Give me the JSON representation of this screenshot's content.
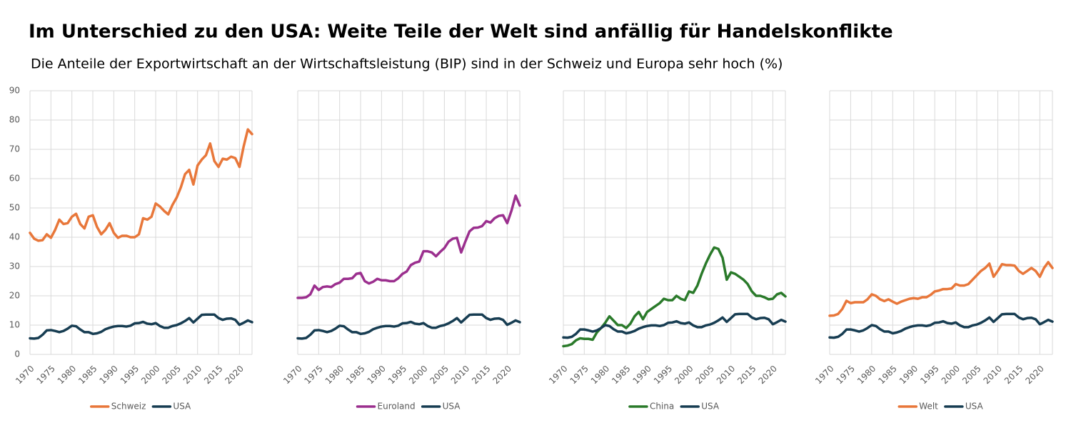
{
  "title": "Im Unterschied zu den USA: Weite Teile der Welt sind anfällig für Handelskonflikte",
  "subtitle": "Die Anteile der Exportwirtschaft an der Wirtschaftsleistung (BIP) sind in der Schweiz und Europa sehr hoch (%)",
  "chart_data": [
    {
      "type": "line",
      "grid": true,
      "show_ytick_labels": true,
      "x": [
        1970,
        1971,
        1972,
        1973,
        1974,
        1975,
        1976,
        1977,
        1978,
        1979,
        1980,
        1981,
        1982,
        1983,
        1984,
        1985,
        1986,
        1987,
        1988,
        1989,
        1990,
        1991,
        1992,
        1993,
        1994,
        1995,
        1996,
        1997,
        1998,
        1999,
        2000,
        2001,
        2002,
        2003,
        2004,
        2005,
        2006,
        2007,
        2008,
        2009,
        2010,
        2011,
        2012,
        2013,
        2014,
        2015,
        2016,
        2017,
        2018,
        2019,
        2020,
        2021,
        2022,
        2023
      ],
      "xlim": [
        1970,
        2023
      ],
      "xticks": [
        1970,
        1975,
        1980,
        1985,
        1990,
        1995,
        2000,
        2005,
        2010,
        2015,
        2020
      ],
      "ylim": [
        0,
        90
      ],
      "yticks": [
        0,
        10,
        20,
        30,
        40,
        50,
        60,
        70,
        80,
        90
      ],
      "series": [
        {
          "name": "Schweiz",
          "color": "#e8773a",
          "values": [
            41.5,
            39.5,
            38.8,
            39.0,
            41.0,
            39.8,
            42.5,
            46.0,
            44.5,
            44.8,
            47.0,
            48.0,
            44.5,
            43.0,
            47.0,
            47.5,
            43.5,
            41.0,
            42.5,
            44.8,
            41.5,
            39.8,
            40.5,
            40.5,
            40.0,
            40.0,
            41.0,
            46.5,
            46.0,
            47.0,
            51.5,
            50.5,
            49.0,
            47.8,
            51.0,
            53.5,
            57.0,
            61.5,
            63.0,
            58.0,
            64.5,
            66.5,
            68.0,
            72.0,
            66.0,
            64.0,
            66.8,
            66.5,
            67.5,
            67.0,
            64.0,
            71.0,
            76.8,
            75.2
          ]
        },
        {
          "name": "USA",
          "color": "#173d52",
          "values": [
            5.5,
            5.4,
            5.6,
            6.7,
            8.2,
            8.3,
            8.0,
            7.6,
            8.0,
            8.8,
            9.8,
            9.6,
            8.5,
            7.6,
            7.6,
            7.0,
            7.2,
            7.7,
            8.6,
            9.1,
            9.5,
            9.7,
            9.7,
            9.5,
            9.8,
            10.6,
            10.7,
            11.1,
            10.5,
            10.3,
            10.7,
            9.7,
            9.1,
            9.1,
            9.7,
            10.0,
            10.6,
            11.4,
            12.4,
            10.9,
            12.2,
            13.5,
            13.6,
            13.6,
            13.6,
            12.4,
            11.8,
            12.2,
            12.3,
            11.8,
            10.1,
            10.8,
            11.6,
            11.0
          ]
        }
      ]
    },
    {
      "type": "line",
      "grid": true,
      "show_ytick_labels": false,
      "x": [
        1970,
        1971,
        1972,
        1973,
        1974,
        1975,
        1976,
        1977,
        1978,
        1979,
        1980,
        1981,
        1982,
        1983,
        1984,
        1985,
        1986,
        1987,
        1988,
        1989,
        1990,
        1991,
        1992,
        1993,
        1994,
        1995,
        1996,
        1997,
        1998,
        1999,
        2000,
        2001,
        2002,
        2003,
        2004,
        2005,
        2006,
        2007,
        2008,
        2009,
        2010,
        2011,
        2012,
        2013,
        2014,
        2015,
        2016,
        2017,
        2018,
        2019,
        2020,
        2021,
        2022,
        2023
      ],
      "xlim": [
        1970,
        2023
      ],
      "xticks": [
        1970,
        1975,
        1980,
        1985,
        1990,
        1995,
        2000,
        2005,
        2010,
        2015,
        2020
      ],
      "ylim": [
        0,
        90
      ],
      "yticks": [
        0,
        10,
        20,
        30,
        40,
        50,
        60,
        70,
        80,
        90
      ],
      "series": [
        {
          "name": "Euroland",
          "color": "#9b2f8e",
          "values": [
            19.3,
            19.3,
            19.5,
            20.5,
            23.5,
            22.0,
            23.0,
            23.2,
            23.0,
            24.0,
            24.5,
            25.8,
            25.8,
            26.0,
            27.5,
            27.8,
            25.0,
            24.2,
            24.8,
            25.8,
            25.3,
            25.3,
            25.0,
            25.0,
            26.0,
            27.5,
            28.3,
            30.5,
            31.3,
            31.7,
            35.2,
            35.2,
            34.8,
            33.5,
            35.0,
            36.3,
            38.5,
            39.5,
            39.8,
            34.8,
            38.5,
            42.0,
            43.2,
            43.3,
            43.8,
            45.5,
            45.0,
            46.5,
            47.3,
            47.5,
            44.8,
            49.0,
            54.2,
            50.8
          ]
        },
        {
          "name": "USA",
          "color": "#173d52",
          "values": [
            5.5,
            5.4,
            5.6,
            6.7,
            8.2,
            8.3,
            8.0,
            7.6,
            8.0,
            8.8,
            9.8,
            9.6,
            8.5,
            7.6,
            7.6,
            7.0,
            7.2,
            7.7,
            8.6,
            9.1,
            9.5,
            9.7,
            9.7,
            9.5,
            9.8,
            10.6,
            10.7,
            11.1,
            10.5,
            10.3,
            10.7,
            9.7,
            9.1,
            9.1,
            9.7,
            10.0,
            10.6,
            11.4,
            12.4,
            10.9,
            12.2,
            13.5,
            13.6,
            13.6,
            13.6,
            12.4,
            11.8,
            12.2,
            12.3,
            11.8,
            10.1,
            10.8,
            11.6,
            11.0
          ]
        }
      ]
    },
    {
      "type": "line",
      "grid": true,
      "show_ytick_labels": false,
      "x": [
        1970,
        1971,
        1972,
        1973,
        1974,
        1975,
        1976,
        1977,
        1978,
        1979,
        1980,
        1981,
        1982,
        1983,
        1984,
        1985,
        1986,
        1987,
        1988,
        1989,
        1990,
        1991,
        1992,
        1993,
        1994,
        1995,
        1996,
        1997,
        1998,
        1999,
        2000,
        2001,
        2002,
        2003,
        2004,
        2005,
        2006,
        2007,
        2008,
        2009,
        2010,
        2011,
        2012,
        2013,
        2014,
        2015,
        2016,
        2017,
        2018,
        2019,
        2020,
        2021,
        2022,
        2023
      ],
      "xlim": [
        1970,
        2023
      ],
      "xticks": [
        1970,
        1975,
        1980,
        1985,
        1990,
        1995,
        2000,
        2005,
        2010,
        2015,
        2020
      ],
      "ylim": [
        0,
        90
      ],
      "yticks": [
        0,
        10,
        20,
        30,
        40,
        50,
        60,
        70,
        80,
        90
      ],
      "series": [
        {
          "name": "China",
          "color": "#2a7a2a",
          "values": [
            2.8,
            3.0,
            3.5,
            4.8,
            5.5,
            5.3,
            5.3,
            5.0,
            7.5,
            9.0,
            10.8,
            13.0,
            11.5,
            10.0,
            10.0,
            9.0,
            10.5,
            13.0,
            14.5,
            12.0,
            14.5,
            15.5,
            16.5,
            17.5,
            19.0,
            18.5,
            18.5,
            20.0,
            19.0,
            18.5,
            21.5,
            21.0,
            23.5,
            27.5,
            31.0,
            34.0,
            36.5,
            36.0,
            33.0,
            25.5,
            28.0,
            27.5,
            26.5,
            25.5,
            24.0,
            21.5,
            20.0,
            20.0,
            19.5,
            18.8,
            19.0,
            20.5,
            21.0,
            19.8
          ]
        },
        {
          "name": "USA",
          "color": "#173d52",
          "values": [
            5.8,
            5.7,
            6.0,
            7.0,
            8.5,
            8.5,
            8.2,
            7.8,
            8.2,
            9.0,
            10.0,
            9.7,
            8.6,
            7.8,
            7.8,
            7.2,
            7.5,
            8.0,
            8.8,
            9.3,
            9.7,
            9.9,
            9.9,
            9.7,
            10.0,
            10.8,
            10.9,
            11.3,
            10.7,
            10.5,
            10.9,
            9.9,
            9.3,
            9.3,
            9.9,
            10.2,
            10.8,
            11.6,
            12.6,
            11.1,
            12.4,
            13.7,
            13.8,
            13.8,
            13.8,
            12.6,
            12.0,
            12.4,
            12.5,
            12.0,
            10.3,
            11.0,
            11.8,
            11.2
          ]
        }
      ]
    },
    {
      "type": "line",
      "grid": true,
      "show_ytick_labels": false,
      "x": [
        1970,
        1971,
        1972,
        1973,
        1974,
        1975,
        1976,
        1977,
        1978,
        1979,
        1980,
        1981,
        1982,
        1983,
        1984,
        1985,
        1986,
        1987,
        1988,
        1989,
        1990,
        1991,
        1992,
        1993,
        1994,
        1995,
        1996,
        1997,
        1998,
        1999,
        2000,
        2001,
        2002,
        2003,
        2004,
        2005,
        2006,
        2007,
        2008,
        2009,
        2010,
        2011,
        2012,
        2013,
        2014,
        2015,
        2016,
        2017,
        2018,
        2019,
        2020,
        2021,
        2022,
        2023
      ],
      "xlim": [
        1970,
        2023
      ],
      "xticks": [
        1970,
        1975,
        1980,
        1985,
        1990,
        1995,
        2000,
        2005,
        2010,
        2015,
        2020
      ],
      "ylim": [
        0,
        90
      ],
      "yticks": [
        0,
        10,
        20,
        30,
        40,
        50,
        60,
        70,
        80,
        90
      ],
      "series": [
        {
          "name": "Welt",
          "color": "#e8773a",
          "values": [
            13.2,
            13.3,
            13.8,
            15.5,
            18.3,
            17.5,
            17.8,
            17.8,
            17.8,
            18.8,
            20.5,
            20.0,
            18.8,
            18.2,
            18.8,
            18.0,
            17.3,
            18.0,
            18.5,
            19.0,
            19.2,
            19.0,
            19.5,
            19.5,
            20.3,
            21.5,
            21.8,
            22.3,
            22.3,
            22.5,
            24.0,
            23.5,
            23.5,
            24.0,
            25.5,
            27.0,
            28.5,
            29.5,
            31.0,
            26.5,
            28.5,
            30.8,
            30.5,
            30.5,
            30.3,
            28.5,
            27.5,
            28.5,
            29.5,
            28.5,
            26.5,
            29.5,
            31.5,
            29.5
          ]
        },
        {
          "name": "USA",
          "color": "#173d52",
          "values": [
            5.8,
            5.7,
            6.0,
            7.0,
            8.5,
            8.5,
            8.2,
            7.8,
            8.2,
            9.0,
            10.0,
            9.7,
            8.6,
            7.8,
            7.8,
            7.2,
            7.5,
            8.0,
            8.8,
            9.3,
            9.7,
            9.9,
            9.9,
            9.7,
            10.0,
            10.8,
            10.9,
            11.3,
            10.7,
            10.5,
            10.9,
            9.9,
            9.3,
            9.3,
            9.9,
            10.2,
            10.8,
            11.6,
            12.6,
            11.1,
            12.4,
            13.7,
            13.8,
            13.8,
            13.8,
            12.6,
            12.0,
            12.4,
            12.5,
            12.0,
            10.3,
            11.0,
            11.8,
            11.2
          ]
        }
      ]
    }
  ]
}
